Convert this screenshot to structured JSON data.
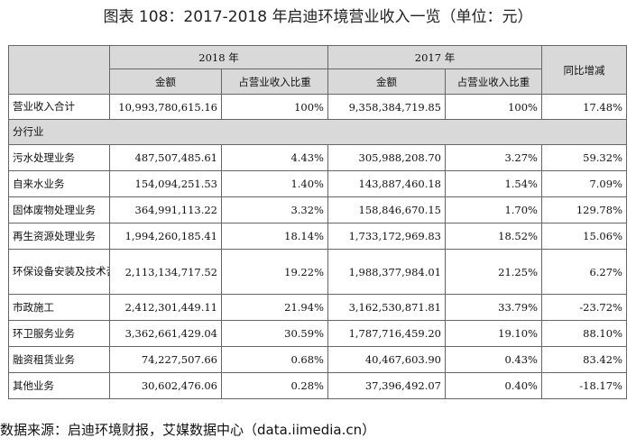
{
  "title": "图表 108：2017-2018 年启迪环境营业收入一览（单位：元）",
  "table": {
    "year_2018": "2018 年",
    "year_2017": "2017 年",
    "yoy": "同比增减",
    "amount": "金额",
    "share": "占营业收入比重",
    "total": {
      "label": "营业收入合计",
      "a2018": "10,993,780,615.16",
      "s2018": "100%",
      "a2017": "9,358,384,719.85",
      "s2017": "100%",
      "yoy": "17.48%"
    },
    "section": "分行业",
    "rows": [
      {
        "label": "污水处理业务",
        "a2018": "487,507,485.61",
        "s2018": "4.43%",
        "a2017": "305,988,208.70",
        "s2017": "3.27%",
        "yoy": "59.32%"
      },
      {
        "label": "自来水业务",
        "a2018": "154,094,251.53",
        "s2018": "1.40%",
        "a2017": "143,887,460.18",
        "s2017": "1.54%",
        "yoy": "7.09%"
      },
      {
        "label": "固体废物处理业务",
        "a2018": "364,991,113.22",
        "s2018": "3.32%",
        "a2017": "158,846,670.15",
        "s2017": "1.70%",
        "yoy": "129.78%"
      },
      {
        "label": "再生资源处理业务",
        "a2018": "1,994,260,185.41",
        "s2018": "18.14%",
        "a2017": "1,733,172,969.83",
        "s2017": "18.52%",
        "yoy": "15.06%"
      },
      {
        "label": "环保设备安装及技术咨询业务",
        "a2018": "2,113,134,717.52",
        "s2018": "19.22%",
        "a2017": "1,988,377,984.01",
        "s2017": "21.25%",
        "yoy": "6.27%"
      },
      {
        "label": "市政施工",
        "a2018": "2,412,301,449.11",
        "s2018": "21.94%",
        "a2017": "3,162,530,871.81",
        "s2017": "33.79%",
        "yoy": "-23.72%"
      },
      {
        "label": "环卫服务业务",
        "a2018": "3,362,661,429.04",
        "s2018": "30.59%",
        "a2017": "1,787,716,459.20",
        "s2017": "19.10%",
        "yoy": "88.10%"
      },
      {
        "label": "融资租赁业务",
        "a2018": "74,227,507.66",
        "s2018": "0.68%",
        "a2017": "40,467,603.90",
        "s2017": "0.43%",
        "yoy": "83.42%"
      },
      {
        "label": "其他业务",
        "a2018": "30,602,476.06",
        "s2018": "0.28%",
        "a2017": "37,396,492.07",
        "s2017": "0.40%",
        "yoy": "-18.17%"
      }
    ]
  },
  "source": "数据来源：启迪环境财报，艾媒数据中心（data.iimedia.cn）"
}
